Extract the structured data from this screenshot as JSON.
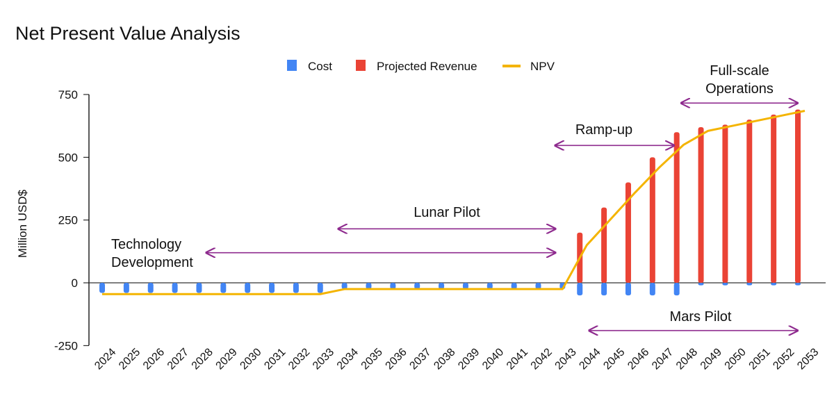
{
  "chart_data": {
    "type": "bar",
    "title": "Net Present Value Analysis",
    "ylabel": "Million USD$",
    "xlabel": "",
    "ylim": [
      -250,
      750
    ],
    "yticks": [
      -250,
      0,
      250,
      500,
      750
    ],
    "categories": [
      "2024",
      "2025",
      "2026",
      "2027",
      "2028",
      "2029",
      "2030",
      "2031",
      "2032",
      "2033",
      "2034",
      "2035",
      "2036",
      "2037",
      "2038",
      "2039",
      "2040",
      "2041",
      "2042",
      "2043",
      "2044",
      "2045",
      "2046",
      "2047",
      "2048",
      "2049",
      "2050",
      "2051",
      "2052",
      "2053"
    ],
    "series": [
      {
        "name": "Cost",
        "type": "bar",
        "color": "#4285f4",
        "values": [
          -40,
          -40,
          -40,
          -40,
          -40,
          -40,
          -40,
          -40,
          -40,
          -40,
          -25,
          -25,
          -25,
          -25,
          -25,
          -25,
          -25,
          -25,
          -25,
          -25,
          -50,
          -50,
          -50,
          -50,
          -50,
          -10,
          -10,
          -10,
          -10,
          -10
        ]
      },
      {
        "name": "Projected Revenue",
        "type": "bar",
        "color": "#ea4335",
        "values": [
          0,
          0,
          0,
          0,
          0,
          0,
          0,
          0,
          0,
          0,
          0,
          0,
          0,
          0,
          0,
          0,
          0,
          0,
          0,
          0,
          200,
          300,
          400,
          500,
          600,
          620,
          630,
          650,
          670,
          690
        ]
      },
      {
        "name": "NPV",
        "type": "line",
        "color": "#f4b400",
        "values": [
          -45,
          -45,
          -45,
          -45,
          -45,
          -45,
          -45,
          -45,
          -45,
          -45,
          -25,
          -25,
          -25,
          -25,
          -25,
          -25,
          -25,
          -25,
          -25,
          -25,
          150,
          255,
          360,
          460,
          550,
          605,
          625,
          645,
          665,
          685
        ]
      }
    ],
    "legend_position": "top-center",
    "annotations": [
      {
        "lines": [
          "Technology",
          "Development"
        ],
        "from": 2028.3,
        "to": 2042.7,
        "y": 120,
        "color": "#8e2a8e"
      },
      {
        "lines": [
          "Lunar Pilot"
        ],
        "from": 2033.75,
        "to": 2042.7,
        "y": 215,
        "color": "#8e2a8e"
      },
      {
        "lines": [
          "Ramp-up"
        ],
        "from": 2042.7,
        "to": 2047.6,
        "y": 547,
        "color": "#8e2a8e"
      },
      {
        "lines": [
          "Full-scale",
          "Operations"
        ],
        "from": 2047.9,
        "to": 2052.7,
        "y": 716,
        "color": "#8e2a8e"
      },
      {
        "lines": [
          "Mars Pilot"
        ],
        "from": 2044.1,
        "to": 2052.7,
        "y": -190,
        "color": "#8e2a8e"
      }
    ]
  }
}
